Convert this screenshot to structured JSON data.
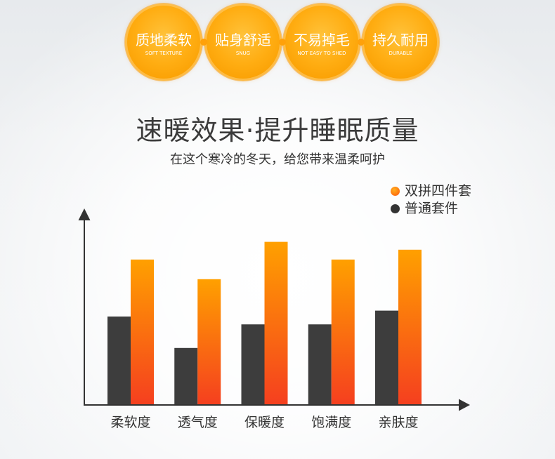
{
  "features": [
    {
      "title": "质地柔软",
      "subtitle": "SOFT TEXTURE"
    },
    {
      "title": "贴身舒适",
      "subtitle": "SNUG"
    },
    {
      "title": "不易掉毛",
      "subtitle": "NOT EASY TO SHED"
    },
    {
      "title": "持久耐用",
      "subtitle": "DURABLE"
    }
  ],
  "chart_data": {
    "type": "bar",
    "title": "速暖效果·提升睡眠质量",
    "subtitle": "在这个寒冷的冬天，给您带来温柔呵护",
    "categories": [
      "柔软度",
      "透气度",
      "保暖度",
      "饱满度",
      "亲肤度"
    ],
    "series": [
      {
        "name": "双拼四件套",
        "values": [
          74,
          64,
          83,
          74,
          79
        ],
        "color": "#FF7A10",
        "gradient": [
          "#FFA000",
          "#F53F1F"
        ]
      },
      {
        "name": "普通套件",
        "values": [
          45,
          29,
          41,
          41,
          48
        ],
        "color": "#3D3D3D"
      }
    ],
    "ylim": [
      0,
      100
    ],
    "grid": false,
    "legend": "top-right"
  }
}
